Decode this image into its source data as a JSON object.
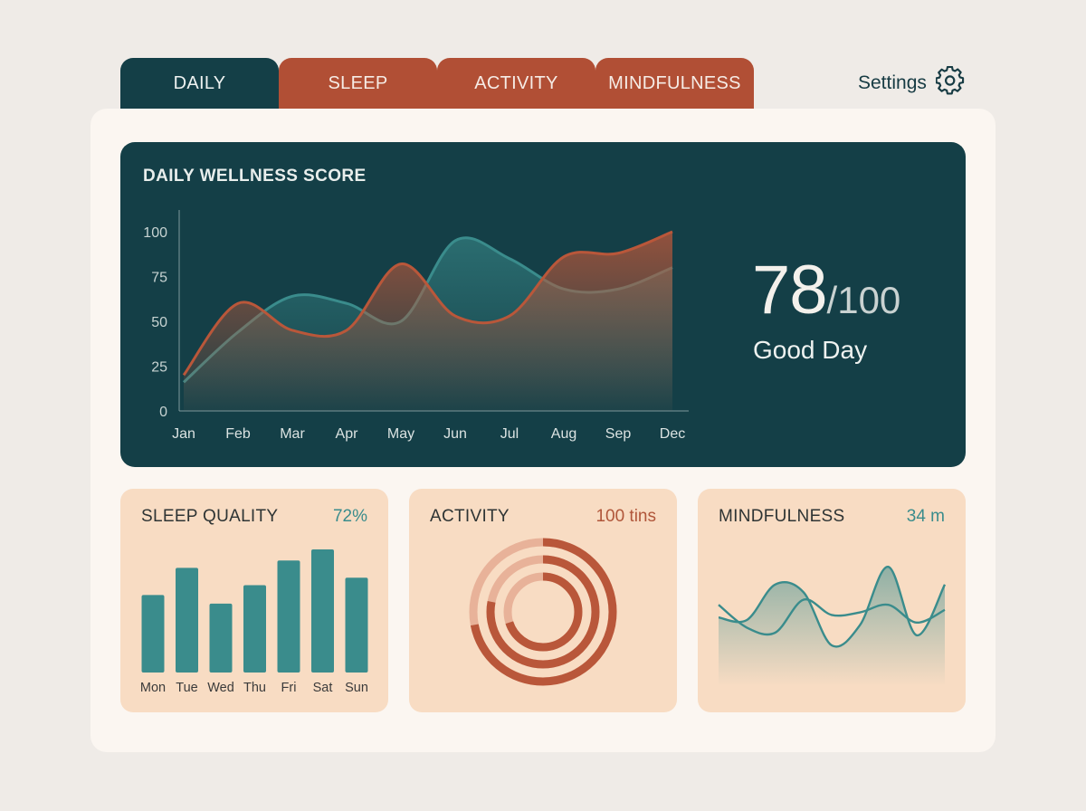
{
  "tabs": [
    {
      "label": "DAILY",
      "active": true
    },
    {
      "label": "SLEEP",
      "active": false
    },
    {
      "label": "ACTIVITY",
      "active": false
    },
    {
      "label": "MINDFULNESS",
      "active": false
    }
  ],
  "settings": {
    "label": "Settings",
    "icon": "gear-icon"
  },
  "colors": {
    "teal_dark": "#143f47",
    "rust": "#b14f35",
    "teal": "#3a8c8c",
    "peach": "#f8dcc3",
    "panel": "#fbf6f1"
  },
  "hero": {
    "title": "DAILY WELLNESS SCORE",
    "score": "78",
    "score_max": "/100",
    "status": "Good Day"
  },
  "chart_data": [
    {
      "type": "area",
      "title": "DAILY WELLNESS SCORE",
      "categories": [
        "Jan",
        "Feb",
        "Mar",
        "Apr",
        "May",
        "Jun",
        "Jul",
        "Aug",
        "Sep",
        "Dec"
      ],
      "ylim": [
        0,
        100
      ],
      "yticks": [
        "0",
        "25",
        "50",
        "75",
        "100"
      ],
      "series": [
        {
          "color": "#b9573a",
          "values": [
            20,
            60,
            45,
            45,
            82,
            53,
            53,
            86,
            88,
            103
          ]
        },
        {
          "color": "#3a8c8c",
          "values": [
            16,
            44,
            64,
            60,
            50,
            95,
            85,
            68,
            68,
            80
          ]
        }
      ]
    },
    {
      "type": "bar",
      "title": "SLEEP QUALITY",
      "metric": "72%",
      "categories": [
        "Mon",
        "Tue",
        "Wed",
        "Thu",
        "Fri",
        "Sat",
        "Sun"
      ],
      "values": [
        0.63,
        0.85,
        0.56,
        0.71,
        0.91,
        1.0,
        0.77
      ],
      "color": "#3a8c8c"
    },
    {
      "type": "pie",
      "title": "ACTIVITY",
      "metric": "100 tins",
      "rings": [
        {
          "value": 0.72,
          "color": "#b9573a"
        },
        {
          "value": 0.78,
          "color": "#b9573a"
        },
        {
          "value": 0.7,
          "color": "#b9573a"
        }
      ]
    },
    {
      "type": "line",
      "title": "MINDFULNESS",
      "metric": "34 m",
      "series": [
        {
          "color": "#3a8c8c",
          "values": [
            0.52,
            0.5,
            0.78,
            0.72,
            0.3,
            0.46,
            0.92,
            0.38,
            0.78
          ]
        },
        {
          "color": "#3a8c8c",
          "values": [
            0.62,
            0.44,
            0.4,
            0.66,
            0.54,
            0.56,
            0.62,
            0.48,
            0.58
          ]
        }
      ]
    }
  ],
  "cards": {
    "sleep": {
      "title": "SLEEP QUALITY",
      "metric": "72%"
    },
    "activity": {
      "title": "ACTIVITY",
      "metric": "100 tins"
    },
    "mindfulness": {
      "title": "MINDFULNESS",
      "metric": "34 m"
    }
  }
}
